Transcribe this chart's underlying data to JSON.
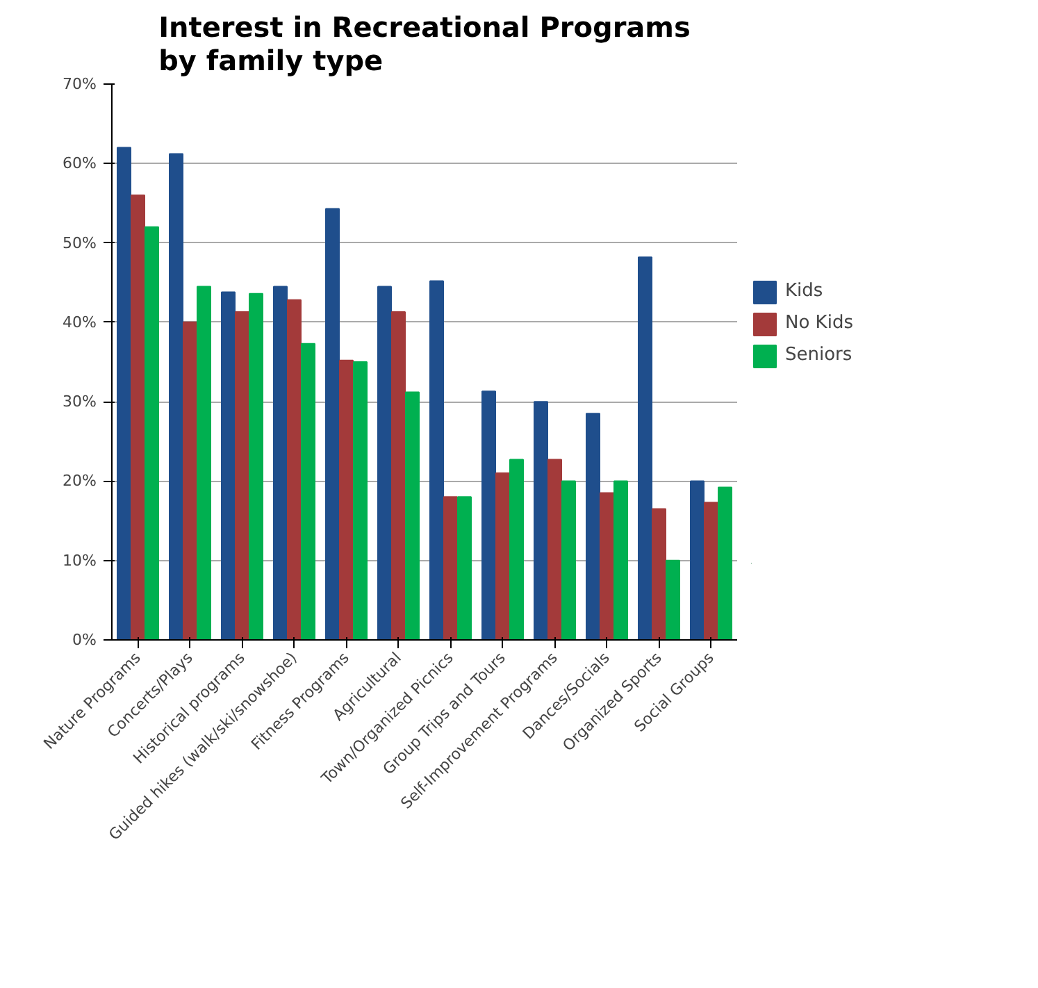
{
  "chart_data": {
    "type": "bar",
    "title": "Interest in Recreational Programs\nby family type",
    "categories": [
      "Nature Programs",
      "Concerts/Plays",
      "Historical programs",
      "Guided hikes (walk/ski/snowshoe)",
      "Fitness Programs",
      "Agricultural",
      "Town/Organized Picnics",
      "Group Trips and Tours",
      "Self-Improvement Programs",
      "Dances/Socials",
      "Organized Sports",
      "Social Groups"
    ],
    "series": [
      {
        "name": "Kids",
        "color": "#1f4e8c",
        "values": [
          0.62,
          0.612,
          0.438,
          0.445,
          0.543,
          0.445,
          0.452,
          0.313,
          0.3,
          0.285,
          0.482,
          0.2
        ]
      },
      {
        "name": "No Kids",
        "color": "#a33a3a",
        "values": [
          0.56,
          0.4,
          0.413,
          0.428,
          0.352,
          0.413,
          0.18,
          0.21,
          0.227,
          0.185,
          0.165,
          0.173
        ]
      },
      {
        "name": "Seniors",
        "color": "#00b050",
        "values": [
          0.52,
          0.445,
          0.436,
          0.373,
          0.35,
          0.312,
          0.18,
          0.227,
          0.2,
          0.2,
          0.1,
          0.192
        ]
      }
    ],
    "ylim": [
      0,
      0.7
    ],
    "yticks": [
      {
        "value": 0,
        "label": "0%"
      },
      {
        "value": 0.1,
        "label": "10%"
      },
      {
        "value": 0.2,
        "label": "20%"
      },
      {
        "value": 0.3,
        "label": "30%"
      },
      {
        "value": 0.4,
        "label": "40%"
      },
      {
        "value": 0.5,
        "label": "50%"
      },
      {
        "value": 0.6,
        "label": "60%"
      },
      {
        "value": 0.7,
        "label": "70%"
      }
    ],
    "grid": "y",
    "legend": "right"
  }
}
